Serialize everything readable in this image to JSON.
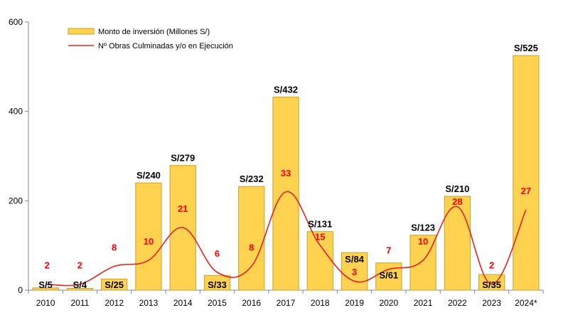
{
  "chart_data": {
    "type": "bar",
    "categories": [
      "2010",
      "2011",
      "2012",
      "2013",
      "2014",
      "2015",
      "2016",
      "2017",
      "2018",
      "2019",
      "2020",
      "2021",
      "2022",
      "2023",
      "2024*"
    ],
    "series": [
      {
        "name": "Monto de inversión (Millones S/)",
        "type": "bar",
        "values": [
          5,
          4,
          25,
          240,
          279,
          33,
          232,
          432,
          131,
          84,
          61,
          123,
          210,
          35,
          525
        ],
        "labels": [
          "S/5",
          "S/4",
          "S/25",
          "S/240",
          "S/279",
          "S/33",
          "S/232",
          "S/432",
          "S/131",
          "S/84",
          "S/61",
          "S/123",
          "S/210",
          "S/35",
          "S/525"
        ]
      },
      {
        "name": "Nº Obras Culminadas y/o en Ejecución",
        "type": "line",
        "smooth": true,
        "axis": "secondary-hidden",
        "values": [
          2,
          2,
          8,
          10,
          21,
          6,
          8,
          33,
          15,
          3,
          7,
          10,
          28,
          2,
          27
        ],
        "labels": [
          "2",
          "2",
          "8",
          "10",
          "21",
          "6",
          "8",
          "33",
          "15",
          "3",
          "7",
          "10",
          "28",
          "2",
          "27"
        ]
      }
    ],
    "yticks": [
      "0",
      "200",
      "400",
      "600"
    ],
    "ylim": [
      0,
      600
    ],
    "y2lim": [
      0,
      90
    ],
    "legend": "top-left",
    "grid": false,
    "colors": {
      "bar": "#FFD24F",
      "bar_border": "#C9A227",
      "line": "#E8231F",
      "line_label": "#FF0000",
      "bar_label": "#000000"
    }
  }
}
